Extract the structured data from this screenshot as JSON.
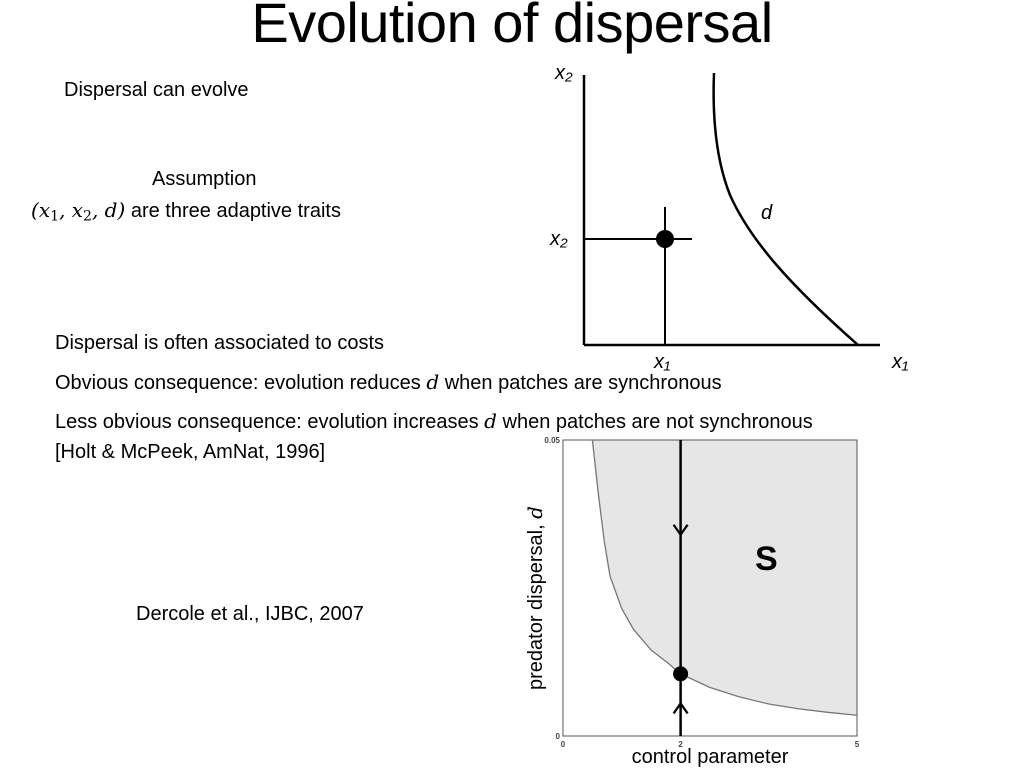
{
  "slide": {
    "title": "Evolution of dispersal",
    "dispersal_can_evolve": "Dispersal can evolve",
    "assumption_heading": "Assumption",
    "assumption_rest": " are three adaptive traits",
    "costs": "Dispersal is often associated to costs",
    "obvious_pre": "Obvious consequence: evolution reduces ",
    "obvious_post": " when patches are synchronous",
    "less_obvious_pre": "Less obvious consequence: evolution increases ",
    "less_obvious_post": " when patches are not synchronous",
    "holt_ref": "[Holt & McPeek, AmNat, 1996]",
    "dercole_ref": "Dercole et al., IJBC, 2007"
  },
  "math": {
    "x": "x",
    "sub1": "1",
    "sub2": "2",
    "d": "d",
    "open_paren": "(",
    "close_paren": ")",
    "comma": ","
  },
  "trait_plot": {
    "x_axis_label": "x₁",
    "y_axis_label": "x₂",
    "point_x_label": "x₁",
    "point_y_label": "x₂",
    "curve_label": "d"
  },
  "bifurcation_plot": {
    "region_label": "S",
    "xlabel": "control parameter",
    "ylabel": "predator dispersal, ",
    "ylabel_symbol": "d",
    "x_ticks": [
      "0",
      "2",
      "5"
    ],
    "y_ticks": [
      "0",
      "0.05"
    ],
    "fill_color": "#e6e6e6"
  },
  "chart_data": {
    "type": "area",
    "title": "",
    "xlabel": "control parameter",
    "ylabel": "predator dispersal, d",
    "xlim": [
      0,
      5
    ],
    "ylim": [
      0,
      0.05
    ],
    "x_ticks": [
      0,
      2,
      5
    ],
    "y_ticks": [
      0,
      0.05
    ],
    "boundary": {
      "x": [
        0.5,
        0.6,
        0.7,
        0.8,
        1.0,
        1.2,
        1.5,
        1.8,
        2.0,
        2.5,
        3.0,
        3.5,
        4.0,
        4.5,
        5.0
      ],
      "y": [
        0.05,
        0.041,
        0.033,
        0.027,
        0.0215,
        0.018,
        0.0145,
        0.0122,
        0.0105,
        0.0082,
        0.0066,
        0.0054,
        0.0046,
        0.004,
        0.0035
      ]
    },
    "region_label": "S",
    "vertical_line_x": 2,
    "equilibrium_point": {
      "x": 2,
      "y": 0.0105
    }
  }
}
